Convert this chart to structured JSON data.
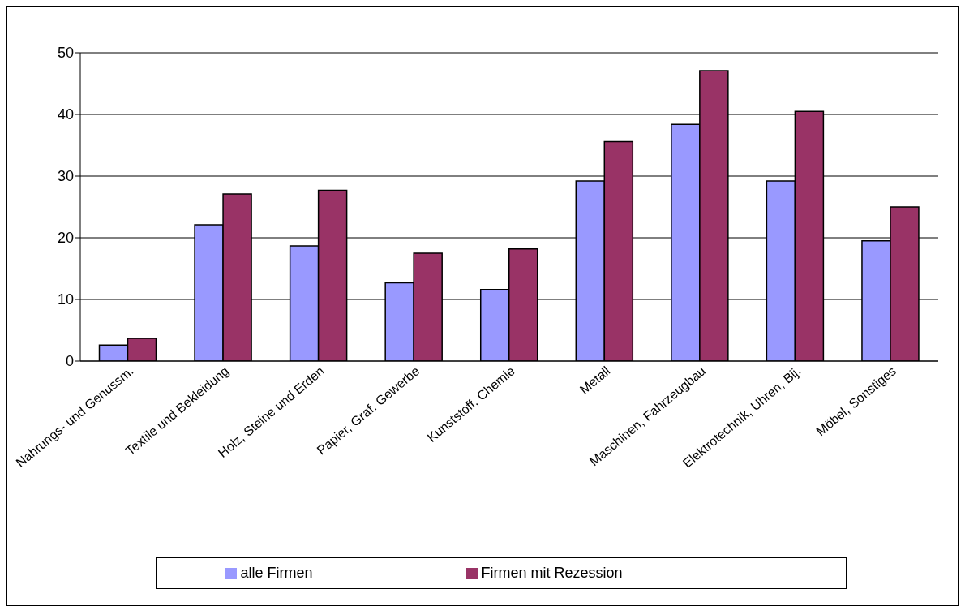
{
  "chart_data": {
    "type": "bar",
    "categories": [
      "Nahrungs- und Genussm.",
      "Textile und Bekleidung",
      "Holz, Steine und Erden",
      "Papier, Graf. Gewerbe",
      "Kunststoff, Chemie",
      "Metall",
      "Maschinen, Fahrzeugbau",
      "Elektrotechnik, Uhren, Bij.",
      "Möbel, Sonstiges"
    ],
    "series": [
      {
        "name": "alle Firmen",
        "color": "#9999ff",
        "values": [
          2.6,
          22.1,
          18.7,
          12.7,
          11.6,
          29.2,
          38.4,
          29.2,
          19.5
        ]
      },
      {
        "name": "Firmen mit Rezession",
        "color": "#993366",
        "values": [
          3.7,
          27.1,
          27.7,
          17.5,
          18.2,
          35.6,
          47.1,
          40.5,
          25.0
        ]
      }
    ],
    "ylim": [
      0,
      50
    ],
    "yticks": [
      0,
      10,
      20,
      30,
      40,
      50
    ],
    "grid": "y",
    "legend": "bottom"
  }
}
